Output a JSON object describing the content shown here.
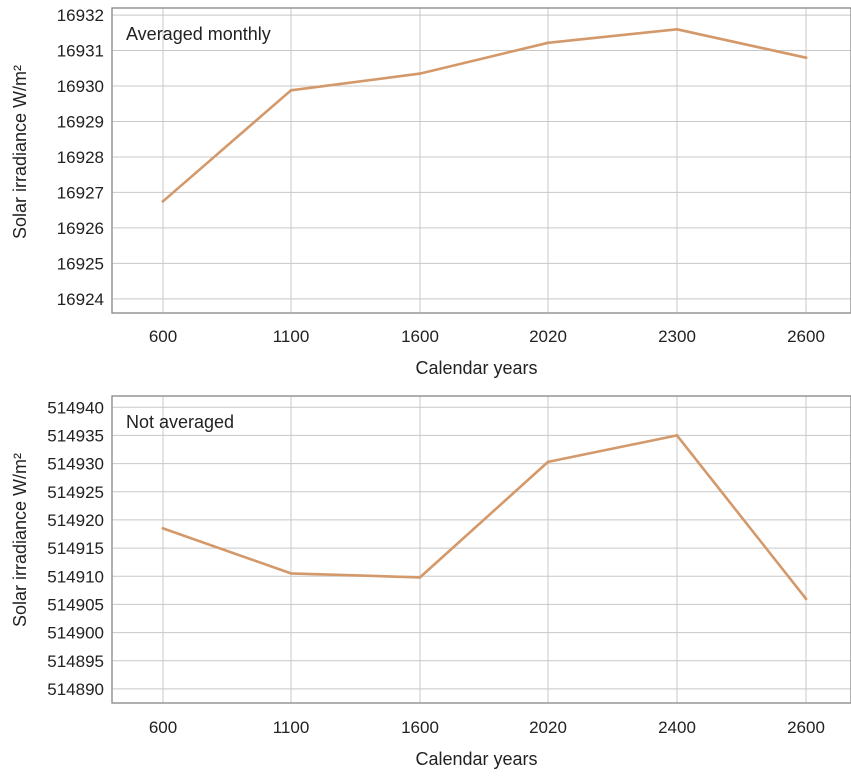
{
  "chart_data": [
    {
      "type": "line",
      "annotation": "Averaged monthly",
      "xlabel": "Calendar years",
      "ylabel": "Solar irradiance W/m²",
      "categories": [
        "600",
        "1100",
        "1600",
        "2020",
        "2300",
        "2600"
      ],
      "y_ticks": [
        "16924",
        "16925",
        "16926",
        "16927",
        "16928",
        "16929",
        "16930",
        "16931",
        "16932"
      ],
      "ylim": [
        16923.6,
        16932.2
      ],
      "series": [
        {
          "values": [
            16926.75,
            16929.88,
            16930.35,
            16931.22,
            16931.6,
            16930.8
          ]
        }
      ],
      "grid": true,
      "line_color": "#d4996a"
    },
    {
      "type": "line",
      "annotation": "Not averaged",
      "xlabel": "Calendar years",
      "ylabel": "Solar irradiance W/m²",
      "categories": [
        "600",
        "1100",
        "1600",
        "2020",
        "2400",
        "2600"
      ],
      "y_ticks": [
        "514890",
        "514895",
        "514900",
        "514905",
        "514910",
        "514915",
        "514920",
        "514925",
        "514930",
        "514935",
        "514940"
      ],
      "ylim": [
        514887.5,
        514942
      ],
      "series": [
        {
          "values": [
            514918.5,
            514910.5,
            514909.8,
            514930.3,
            514935,
            514906
          ]
        }
      ],
      "grid": true,
      "line_color": "#d4996a"
    }
  ]
}
